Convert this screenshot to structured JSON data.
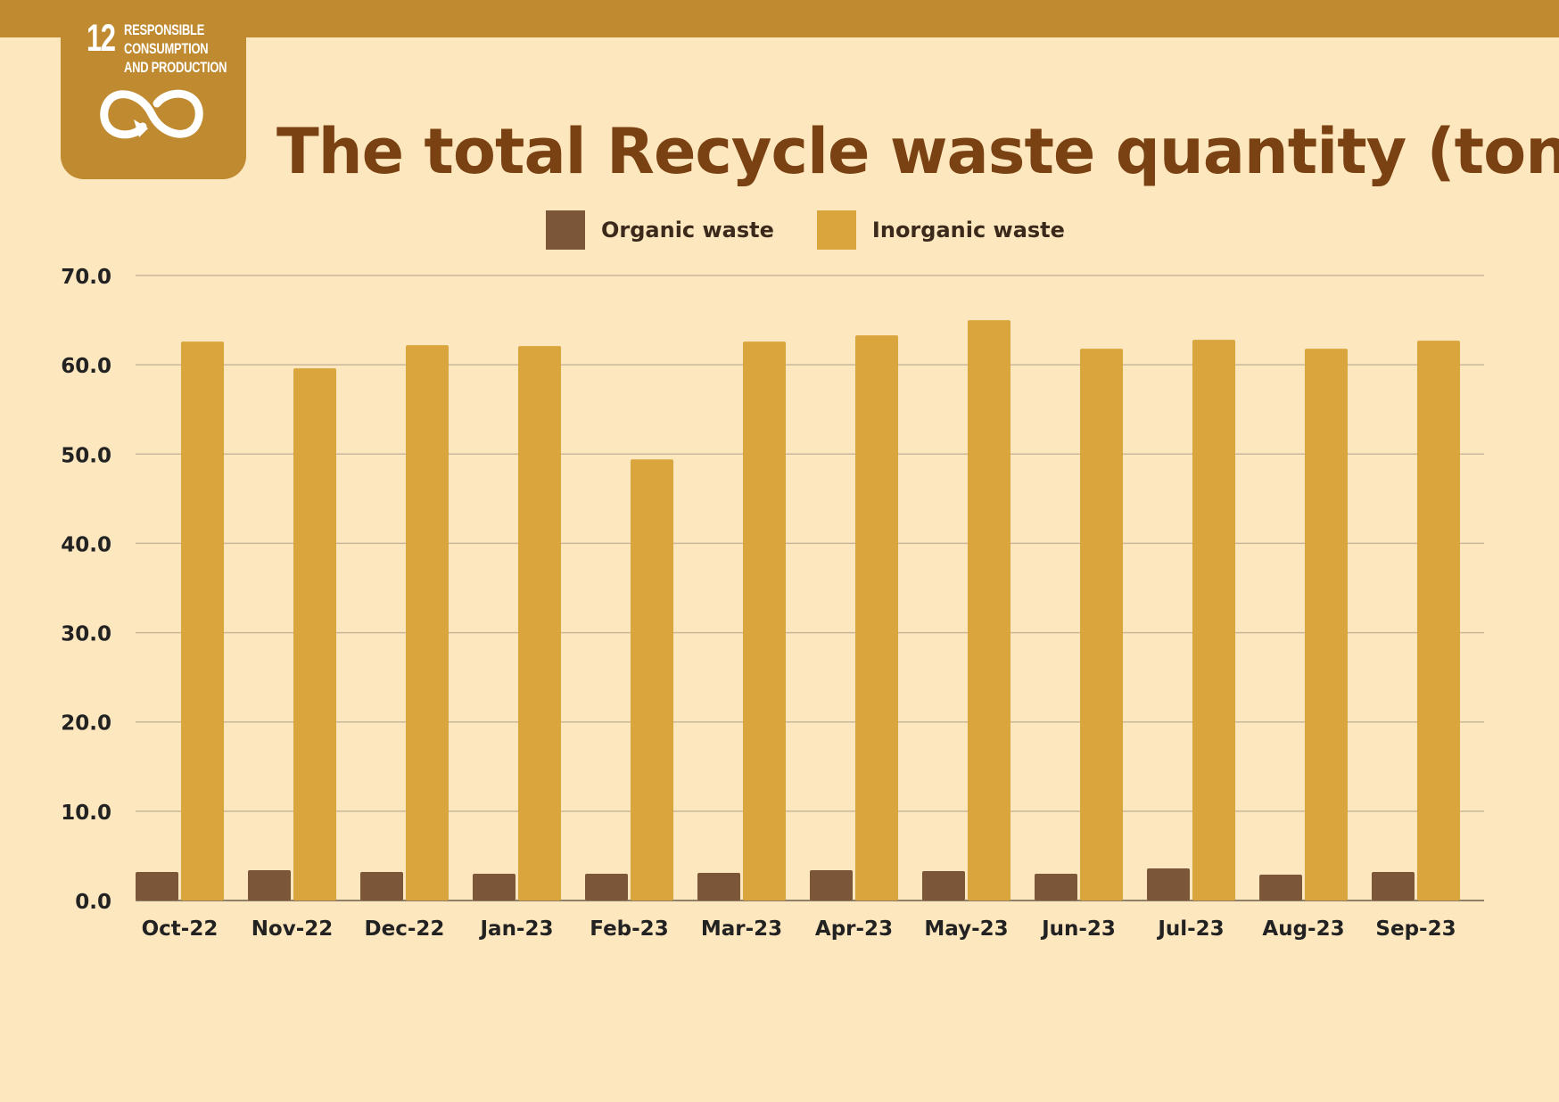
{
  "badge": {
    "number": "12",
    "lines": [
      "RESPONSIBLE",
      "CONSUMPTION",
      "AND PRODUCTION"
    ],
    "icon": "infinity-arrow-icon"
  },
  "colors": {
    "background": "#FDE7BF",
    "band": "#BF8A30",
    "title": "#7A4112",
    "organic": "#7B5638",
    "inorganic": "#D9A53C",
    "grid": "#C8B79B"
  },
  "chart_data": {
    "type": "bar",
    "title": "The total Recycle waste quantity (tons)",
    "xlabel": "",
    "ylabel": "",
    "ylim": [
      0,
      70
    ],
    "yticks": [
      "0.0",
      "10.0",
      "20.0",
      "30.0",
      "40.0",
      "50.0",
      "60.0",
      "70.0"
    ],
    "grid": true,
    "legend_position": "top-center",
    "categories": [
      "Oct-22",
      "Nov-22",
      "Dec-22",
      "Jan-23",
      "Feb-23",
      "Mar-23",
      "Apr-23",
      "May-23",
      "Jun-23",
      "Jul-23",
      "Aug-23",
      "Sep-23"
    ],
    "series": [
      {
        "name": "Organic waste",
        "color": "#7B5638",
        "values": [
          3.2,
          3.4,
          3.2,
          3.0,
          3.0,
          3.1,
          3.4,
          3.3,
          3.0,
          3.6,
          2.9,
          3.2
        ]
      },
      {
        "name": "Inorganic waste",
        "color": "#D9A53C",
        "values": [
          62.6,
          59.6,
          62.2,
          62.1,
          49.4,
          62.6,
          63.3,
          65.0,
          61.8,
          62.8,
          61.8,
          62.7
        ]
      }
    ]
  }
}
